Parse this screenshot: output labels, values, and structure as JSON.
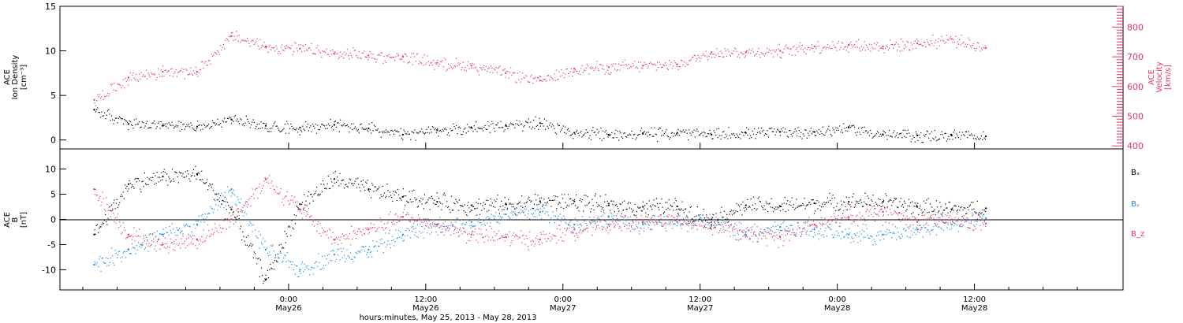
{
  "chart_data": [
    {
      "type": "scatter",
      "panel": "top",
      "ylabel_left": [
        "ACE",
        "Ion Density",
        "[cm⁻³]"
      ],
      "ylabel_right": [
        "ACE",
        "Velocity",
        "[km/s]"
      ],
      "left_axis": {
        "ylim": [
          -1,
          15
        ],
        "ticks": [
          0,
          5,
          10,
          15
        ]
      },
      "right_axis": {
        "ylim": [
          390,
          870
        ],
        "ticks": [
          400,
          500,
          600,
          700,
          800
        ]
      },
      "series": [
        {
          "name": "Ion Density",
          "axis": "left",
          "color": "#000000",
          "x": [
            -17,
            -14,
            -11,
            -8,
            -5,
            -2,
            1,
            4,
            7,
            10,
            13,
            16,
            19,
            22,
            25,
            28,
            31,
            34,
            37,
            40,
            43,
            46,
            49,
            52,
            55,
            58,
            61
          ],
          "y": [
            3.4,
            1.8,
            1.6,
            1.5,
            2.3,
            1.6,
            1.4,
            1.7,
            1.3,
            0.6,
            1.1,
            1.4,
            1.6,
            1.9,
            0.8,
            0.6,
            0.7,
            0.8,
            0.6,
            0.8,
            0.9,
            0.9,
            1.4,
            0.6,
            0.5,
            0.5,
            0.4
          ]
        },
        {
          "name": "Velocity",
          "axis": "right",
          "color": "#e5355f",
          "x": [
            -17,
            -14,
            -11,
            -8,
            -5,
            -2,
            1,
            4,
            7,
            10,
            13,
            16,
            19,
            22,
            25,
            28,
            31,
            34,
            37,
            40,
            43,
            46,
            49,
            52,
            55,
            58,
            61
          ],
          "y": [
            555,
            630,
            650,
            650,
            770,
            735,
            728,
            710,
            705,
            700,
            680,
            670,
            645,
            620,
            660,
            665,
            670,
            675,
            715,
            715,
            720,
            735,
            740,
            735,
            745,
            760,
            730
          ]
        }
      ]
    },
    {
      "type": "scatter",
      "panel": "bottom",
      "ylabel": [
        "ACE",
        "B",
        "[nT]"
      ],
      "ylim": [
        -14,
        14
      ],
      "ticks": [
        -10,
        -5,
        0,
        5,
        10
      ],
      "legend_position": "right",
      "legend": [
        {
          "label": "Bₓ",
          "color": "#000000"
        },
        {
          "label": "Bᵧ",
          "color": "#1e8ae3"
        },
        {
          "label": "B_z",
          "color": "#e5355f"
        }
      ],
      "series": [
        {
          "name": "Bx",
          "color": "#000000",
          "x": [
            -17,
            -14,
            -11,
            -8,
            -5,
            -2,
            1,
            4,
            7,
            10,
            13,
            16,
            19,
            22,
            25,
            28,
            31,
            34,
            37,
            40,
            43,
            46,
            49,
            52,
            55,
            58,
            61
          ],
          "y": [
            -3,
            7,
            8.5,
            9,
            2,
            -12,
            3,
            8,
            6,
            4.5,
            3.5,
            2.8,
            3,
            3.6,
            3.6,
            2.8,
            2.5,
            2.6,
            0,
            2.8,
            2.6,
            3.2,
            3.5,
            3.5,
            2.5,
            2.0,
            2.2
          ]
        },
        {
          "name": "By",
          "color": "#1e8ae3",
          "x": [
            -17,
            -14,
            -11,
            -8,
            -5,
            -2,
            1,
            4,
            7,
            10,
            13,
            16,
            19,
            22,
            25,
            28,
            31,
            34,
            37,
            40,
            43,
            46,
            49,
            52,
            55,
            58,
            61
          ],
          "y": [
            -9,
            -6,
            -3,
            -1,
            6,
            -6,
            -10,
            -7,
            -6,
            -3,
            -1,
            -0.5,
            1,
            1.5,
            -1,
            0.5,
            -1,
            -0.5,
            -0.5,
            -2.5,
            -1.5,
            -2,
            -3,
            -3,
            -2,
            -1,
            0.2
          ]
        },
        {
          "name": "Bz",
          "color": "#e5355f",
          "x": [
            -17,
            -14,
            -11,
            -8,
            -5,
            -2,
            1,
            4,
            7,
            10,
            13,
            16,
            19,
            22,
            25,
            28,
            31,
            34,
            37,
            40,
            43,
            46,
            49,
            52,
            55,
            58,
            61
          ],
          "y": [
            6,
            -3,
            -5,
            -4,
            0,
            8,
            2,
            -4,
            -2,
            0.5,
            -1,
            -3,
            -3.5,
            -4,
            -2,
            -1,
            -0.5,
            0,
            -1,
            -3,
            -3.5,
            -1,
            0.5,
            1.5,
            -0.5,
            0,
            -0.8
          ]
        }
      ]
    }
  ],
  "x_axis": {
    "range": [
      -20,
      73
    ],
    "ticks": [
      {
        "x": 0,
        "time": "0:00",
        "date": "May26"
      },
      {
        "x": 12,
        "time": "12:00",
        "date": "May26"
      },
      {
        "x": 24,
        "time": "0:00",
        "date": "May27"
      },
      {
        "x": 36,
        "time": "12:00",
        "date": "May27"
      },
      {
        "x": 48,
        "time": "0:00",
        "date": "May28"
      },
      {
        "x": 60,
        "time": "12:00",
        "date": "May28"
      }
    ],
    "xlabel": "hours:minutes, May 25, 2013 - May 28, 2013"
  }
}
